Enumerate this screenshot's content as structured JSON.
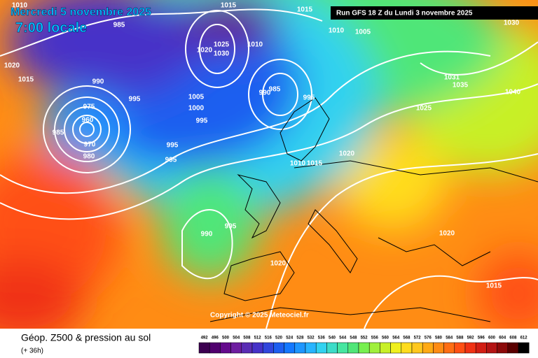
{
  "header": {
    "date": "Mercredi 5 novembre 2025",
    "time": "7:00 locale",
    "run": "Run GFS 18 Z du Lundi 3 novembre 2025"
  },
  "map": {
    "isobar_labels": [
      "1010",
      "985",
      "1015",
      "1015",
      "1010",
      "1005",
      "1030",
      "1020",
      "1015",
      "990",
      "995",
      "975",
      "960",
      "985",
      "970",
      "980",
      "1025",
      "1020",
      "1030",
      "1010",
      "985",
      "990",
      "995",
      "1005",
      "1000",
      "995",
      "995",
      "995",
      "1010",
      "1015",
      "1020",
      "1031",
      "1035",
      "1040",
      "1025",
      "990",
      "995",
      "1020",
      "1020",
      "1015"
    ],
    "copyright": "Copyright © 2025 Meteociel.fr"
  },
  "footer": {
    "title": "Géop. Z500 & pression au sol",
    "lead": "(+ 36h)",
    "colorbar": {
      "labels": [
        492,
        496,
        500,
        504,
        508,
        512,
        516,
        520,
        524,
        528,
        532,
        536,
        540,
        544,
        548,
        552,
        556,
        560,
        564,
        568,
        572,
        576,
        580,
        584,
        588,
        592,
        596,
        600,
        604,
        608,
        612
      ],
      "colors": [
        "#3c0050",
        "#50006e",
        "#640a8c",
        "#6e1ea0",
        "#5a2db4",
        "#4632c8",
        "#3246dc",
        "#1e5ff0",
        "#1478ff",
        "#1e96ff",
        "#28b4ff",
        "#32d2f0",
        "#3cdcc8",
        "#46e6a0",
        "#50e678",
        "#78f050",
        "#a0f03c",
        "#c8f028",
        "#f0f01e",
        "#ffdc1e",
        "#ffc81e",
        "#ffaa14",
        "#ff8c14",
        "#ff6e14",
        "#ff5014",
        "#f03214",
        "#d21e14",
        "#b41414",
        "#8c0a0a",
        "#5a0000",
        "#000000"
      ]
    }
  }
}
